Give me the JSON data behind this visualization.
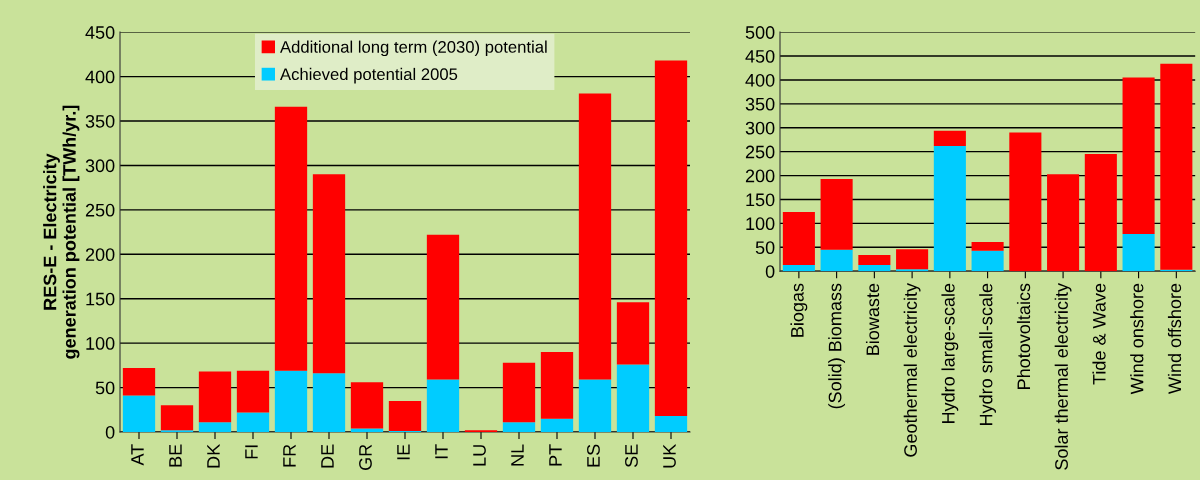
{
  "chart_data": [
    {
      "type": "bar",
      "stacked": true,
      "ylabel": "RES-E - Electricity\ngeneration potential [TWh/yr.]",
      "categories": [
        "AT",
        "BE",
        "DK",
        "FI",
        "FR",
        "DE",
        "GR",
        "IE",
        "IT",
        "LU",
        "NL",
        "PT",
        "ES",
        "SE",
        "UK"
      ],
      "series": [
        {
          "name": "Achieved potential 2005",
          "color": "#00ccff",
          "values": [
            41,
            2,
            11,
            22,
            69,
            66,
            4,
            1,
            59,
            0,
            11,
            15,
            59,
            76,
            18
          ]
        },
        {
          "name": "Additional long term (2030) potential",
          "color": "#ff0000",
          "values": [
            31,
            28,
            57,
            47,
            297,
            224,
            52,
            34,
            163,
            2,
            67,
            75,
            322,
            70,
            400
          ]
        }
      ],
      "ylim": [
        0,
        450
      ],
      "yticks": [
        0,
        50,
        100,
        150,
        200,
        250,
        300,
        350,
        400,
        450
      ],
      "grid": "y",
      "legend": "top right"
    },
    {
      "type": "bar",
      "stacked": true,
      "categories": [
        "Biogas",
        "(Solid) Biomass",
        "Biowaste",
        "Geothermal electricity",
        "Hydro large-scale",
        "Hydro small-scale",
        "Photovoltaics",
        "Solar thermal electricity",
        "Tide & Wave",
        "Wind onshore",
        "Wind offshore"
      ],
      "series": [
        {
          "color": "#00ccff",
          "values": [
            13,
            45,
            13,
            4,
            262,
            43,
            0,
            0,
            0,
            78,
            3
          ]
        },
        {
          "color": "#ff0000",
          "values": [
            111,
            148,
            21,
            42,
            32,
            18,
            290,
            203,
            245,
            327,
            431
          ]
        }
      ],
      "ylim": [
        0,
        500
      ],
      "yticks": [
        0,
        50,
        100,
        150,
        200,
        250,
        300,
        350,
        400,
        450,
        500
      ],
      "grid": "y"
    }
  ]
}
